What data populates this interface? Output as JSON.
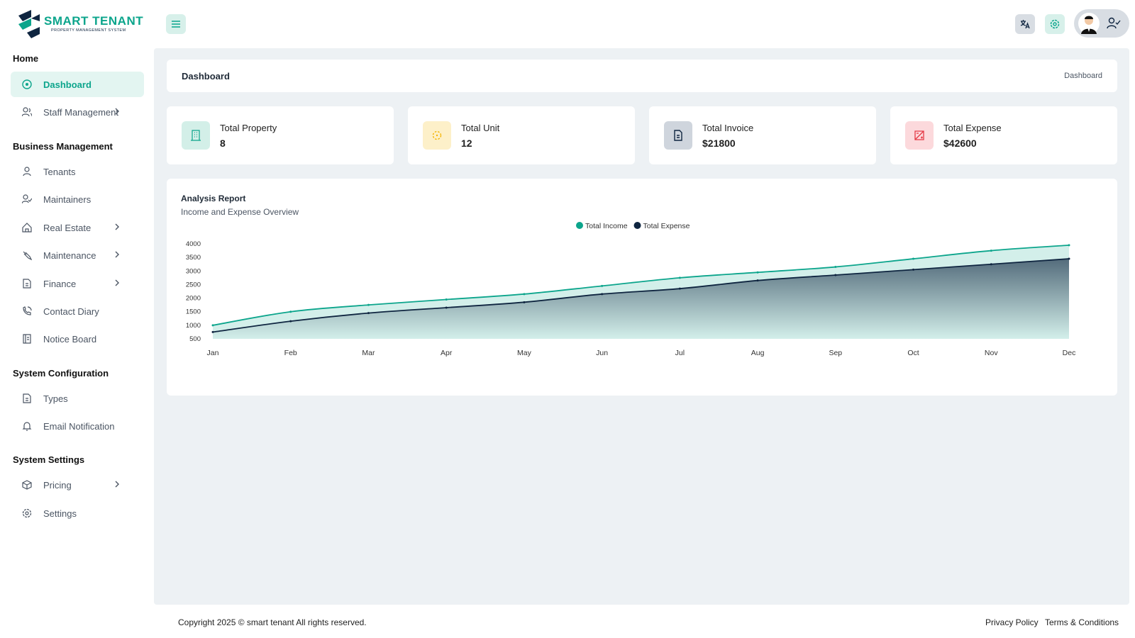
{
  "brand": {
    "name": "SMART TENANT",
    "tagline": "PROPERTY MANAGEMENT SYSTEM"
  },
  "sidebar": [
    {
      "heading": "Home",
      "items": [
        "Dashboard",
        "Staff Management"
      ]
    },
    {
      "heading": "Business Management",
      "items": [
        "Tenants",
        "Maintainers",
        "Real Estate",
        "Maintenance",
        "Finance",
        "Contact Diary",
        "Notice Board"
      ]
    },
    {
      "heading": "System Configuration",
      "items": [
        "Types",
        "Email Notification"
      ]
    },
    {
      "heading": "System Settings",
      "items": [
        "Pricing",
        "Settings"
      ]
    }
  ],
  "breadcrumb": {
    "title": "Dashboard",
    "trail": "Dashboard"
  },
  "cards": [
    {
      "label": "Total Property",
      "value": 8
    },
    {
      "label": "Total Unit",
      "value": 12
    },
    {
      "label": "Total Invoice",
      "value": "$21800"
    },
    {
      "label": "Total Expense",
      "value": "$42600"
    }
  ],
  "chart_data": {
    "type": "area",
    "title": "Analysis Report",
    "subtitle": "Income and Expense Overview",
    "categories": [
      "Jan",
      "Feb",
      "Mar",
      "Apr",
      "May",
      "Jun",
      "Jul",
      "Aug",
      "Sep",
      "Oct",
      "Nov",
      "Dec"
    ],
    "series": [
      {
        "name": "Total Income",
        "color": "#0ca58c",
        "values": [
          1000,
          1500,
          1750,
          1950,
          2150,
          2450,
          2750,
          2950,
          3150,
          3450,
          3750,
          3950
        ]
      },
      {
        "name": "Total Expense",
        "color": "#0f2540",
        "values": [
          750,
          1150,
          1450,
          1650,
          1850,
          2150,
          2350,
          2650,
          2850,
          3050,
          3250,
          3450
        ]
      }
    ],
    "ylim": [
      500,
      4000
    ],
    "yticks": [
      500,
      1000,
      1500,
      2000,
      2500,
      3000,
      3500,
      4000
    ],
    "legend": "top"
  },
  "footer": {
    "copyright": "Copyright 2025 © smart tenant All rights reserved.",
    "links": [
      "Privacy Policy",
      "Terms & Conditions"
    ]
  }
}
